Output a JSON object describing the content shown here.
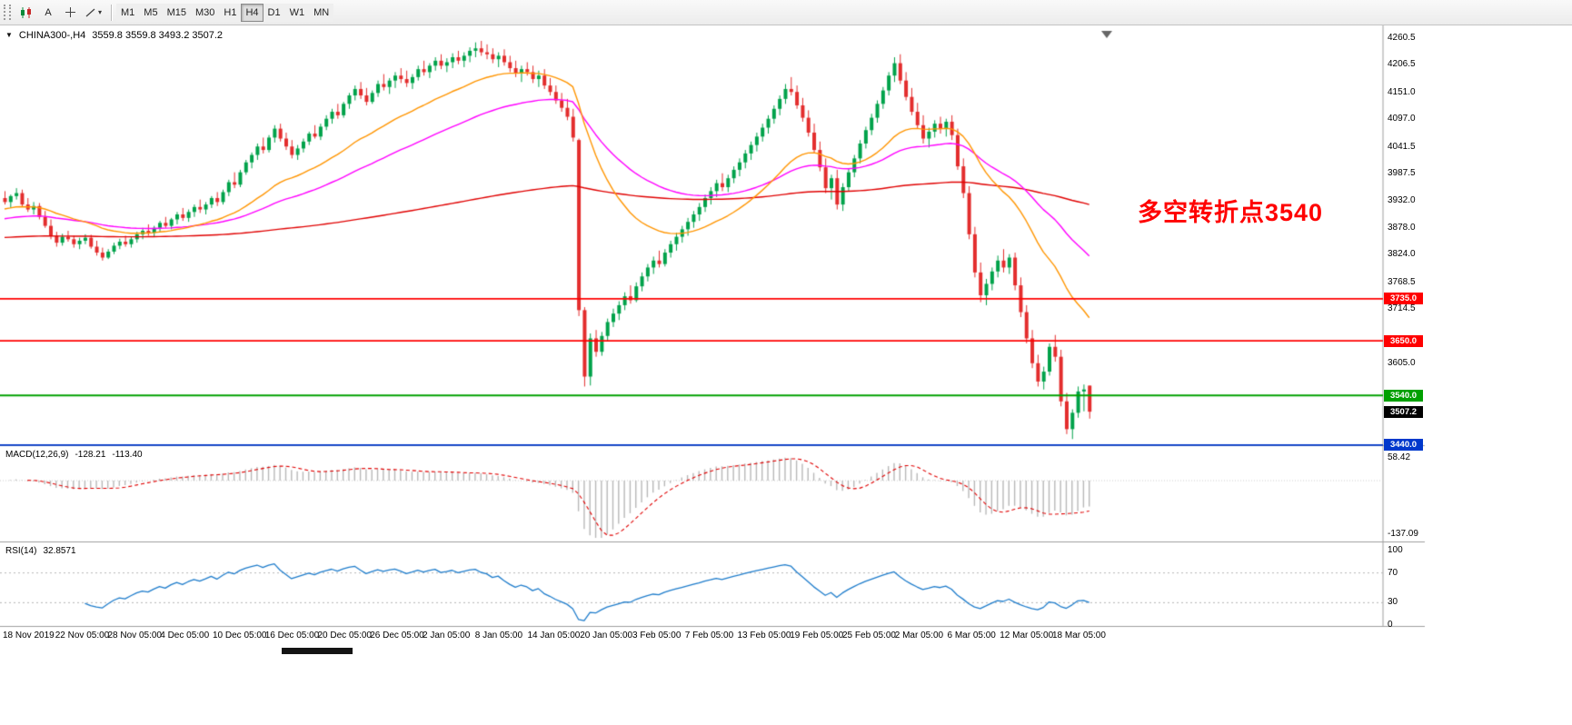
{
  "toolbar": {
    "text_tool_label": "A",
    "icons": [
      "chart-candles-icon",
      "text-tool",
      "crosshair-tool",
      "shapes-dropdown"
    ],
    "dropdown_arrow": "▾",
    "timeframes": [
      "M1",
      "M5",
      "M15",
      "M30",
      "H1",
      "H4",
      "D1",
      "W1",
      "MN"
    ],
    "active_timeframe": "H4"
  },
  "header": {
    "symbol_period": "CHINA300-,H4",
    "ohlc": "3559.8 3559.8 3493.2 3507.2"
  },
  "annotation": {
    "text": "多空转折点3540",
    "color": "#FF0000"
  },
  "price_axis": {
    "ticks": [
      4260.5,
      4206.5,
      4151.0,
      4097.0,
      4041.5,
      3987.5,
      3932.0,
      3878.0,
      3824.0,
      3768.5,
      3714.5,
      3605.0
    ],
    "min": 3439.5,
    "max": 4277.0
  },
  "levels": [
    {
      "value": 3735.0,
      "label": "3735.0",
      "color": "#FF0000"
    },
    {
      "value": 3650.0,
      "label": "3650.0",
      "color": "#FF0000"
    },
    {
      "value": 3540.0,
      "label": "3540.0",
      "color": "#00A000"
    },
    {
      "value": 3440.0,
      "label": "3440.0",
      "color": "#0038CC"
    }
  ],
  "current_price": {
    "value": 3507.2,
    "label": "3507.2",
    "bg": "#000000"
  },
  "time_axis": {
    "labels": [
      "18 Nov 2019",
      "22 Nov 05:00",
      "28 Nov 05:00",
      "4 Dec 05:00",
      "10 Dec 05:00",
      "16 Dec 05:00",
      "20 Dec 05:00",
      "26 Dec 05:00",
      "2 Jan 05:00",
      "8 Jan 05:00",
      "14 Jan 05:00",
      "20 Jan 05:00",
      "3 Feb 05:00",
      "7 Feb 05:00",
      "13 Feb 05:00",
      "19 Feb 05:00",
      "25 Feb 05:00",
      "2 Mar 05:00",
      "6 Mar 05:00",
      "12 Mar 05:00",
      "18 Mar 05:00"
    ]
  },
  "macd": {
    "name": "MACD(12,26,9)",
    "value": "-128.21",
    "signal": "-113.40",
    "axis_labels": [
      {
        "value": 58.42,
        "label": "58.42"
      },
      {
        "value": -137.09,
        "label": "-137.09"
      }
    ],
    "axis_max": 58.42,
    "axis_min": -137.09,
    "hist_color": "#B8B8B8",
    "line_color": "#E00000"
  },
  "rsi": {
    "name": "RSI(14)",
    "value": "32.8571",
    "axis_labels": [
      {
        "value": 100,
        "label": "100"
      },
      {
        "value": 70,
        "label": "70"
      },
      {
        "value": 30,
        "label": "30"
      },
      {
        "value": 0,
        "label": "0"
      }
    ],
    "levels": [
      70,
      30
    ],
    "color": "#1E7CCB"
  },
  "ma_colors": {
    "fast": "#FF9500",
    "mid": "#FF00FF",
    "slow": "#E00000"
  },
  "chart_data": {
    "type": "candlestick",
    "symbol": "CHINA300-",
    "timeframe": "H4",
    "up_color": "#00A24A",
    "down_color": "#E32D2D",
    "candles": [
      [
        3938,
        3952,
        3925,
        3930
      ],
      [
        3930,
        3945,
        3918,
        3942
      ],
      [
        3942,
        3958,
        3935,
        3948
      ],
      [
        3948,
        3955,
        3920,
        3925
      ],
      [
        3925,
        3938,
        3910,
        3915
      ],
      [
        3915,
        3930,
        3905,
        3922
      ],
      [
        3922,
        3928,
        3895,
        3900
      ],
      [
        3900,
        3912,
        3878,
        3882
      ],
      [
        3882,
        3895,
        3855,
        3862
      ],
      [
        3862,
        3870,
        3840,
        3848
      ],
      [
        3848,
        3866,
        3842,
        3860
      ],
      [
        3860,
        3872,
        3850,
        3855
      ],
      [
        3855,
        3862,
        3838,
        3845
      ],
      [
        3845,
        3858,
        3835,
        3852
      ],
      [
        3852,
        3865,
        3845,
        3858
      ],
      [
        3858,
        3864,
        3836,
        3840
      ],
      [
        3840,
        3852,
        3822,
        3828
      ],
      [
        3828,
        3838,
        3812,
        3818
      ],
      [
        3818,
        3835,
        3815,
        3830
      ],
      [
        3830,
        3848,
        3825,
        3842
      ],
      [
        3842,
        3856,
        3835,
        3850
      ],
      [
        3850,
        3862,
        3840,
        3845
      ],
      [
        3845,
        3860,
        3838,
        3855
      ],
      [
        3855,
        3870,
        3848,
        3865
      ],
      [
        3865,
        3878,
        3855,
        3872
      ],
      [
        3872,
        3885,
        3862,
        3868
      ],
      [
        3868,
        3882,
        3860,
        3878
      ],
      [
        3878,
        3892,
        3870,
        3888
      ],
      [
        3888,
        3900,
        3878,
        3882
      ],
      [
        3882,
        3898,
        3875,
        3895
      ],
      [
        3895,
        3910,
        3885,
        3905
      ],
      [
        3905,
        3918,
        3892,
        3898
      ],
      [
        3898,
        3915,
        3890,
        3910
      ],
      [
        3910,
        3925,
        3900,
        3920
      ],
      [
        3920,
        3935,
        3908,
        3915
      ],
      [
        3915,
        3930,
        3905,
        3925
      ],
      [
        3925,
        3942,
        3918,
        3938
      ],
      [
        3938,
        3950,
        3922,
        3930
      ],
      [
        3930,
        3955,
        3925,
        3950
      ],
      [
        3950,
        3975,
        3942,
        3970
      ],
      [
        3970,
        3990,
        3958,
        3965
      ],
      [
        3965,
        3995,
        3960,
        3990
      ],
      [
        3990,
        4015,
        3985,
        4010
      ],
      [
        4010,
        4030,
        3998,
        4025
      ],
      [
        4025,
        4048,
        4015,
        4042
      ],
      [
        4042,
        4060,
        4028,
        4035
      ],
      [
        4035,
        4065,
        4030,
        4060
      ],
      [
        4060,
        4085,
        4050,
        4078
      ],
      [
        4078,
        4088,
        4052,
        4058
      ],
      [
        4058,
        4070,
        4035,
        4042
      ],
      [
        4042,
        4055,
        4018,
        4025
      ],
      [
        4025,
        4045,
        4015,
        4038
      ],
      [
        4038,
        4058,
        4030,
        4052
      ],
      [
        4052,
        4072,
        4045,
        4068
      ],
      [
        4068,
        4085,
        4058,
        4062
      ],
      [
        4062,
        4088,
        4055,
        4082
      ],
      [
        4082,
        4105,
        4075,
        4098
      ],
      [
        4098,
        4118,
        4088,
        4112
      ],
      [
        4112,
        4128,
        4098,
        4105
      ],
      [
        4105,
        4132,
        4100,
        4128
      ],
      [
        4128,
        4150,
        4118,
        4145
      ],
      [
        4145,
        4165,
        4135,
        4158
      ],
      [
        4158,
        4172,
        4138,
        4145
      ],
      [
        4145,
        4160,
        4125,
        4132
      ],
      [
        4132,
        4155,
        4128,
        4150
      ],
      [
        4150,
        4175,
        4142,
        4168
      ],
      [
        4168,
        4188,
        4155,
        4162
      ],
      [
        4162,
        4180,
        4148,
        4175
      ],
      [
        4175,
        4192,
        4160,
        4185
      ],
      [
        4185,
        4200,
        4170,
        4178
      ],
      [
        4178,
        4195,
        4162,
        4170
      ],
      [
        4170,
        4188,
        4158,
        4182
      ],
      [
        4182,
        4205,
        4175,
        4198
      ],
      [
        4198,
        4215,
        4185,
        4192
      ],
      [
        4192,
        4210,
        4180,
        4205
      ],
      [
        4205,
        4222,
        4195,
        4215
      ],
      [
        4215,
        4228,
        4198,
        4205
      ],
      [
        4205,
        4220,
        4192,
        4212
      ],
      [
        4212,
        4230,
        4200,
        4222
      ],
      [
        4222,
        4235,
        4208,
        4215
      ],
      [
        4215,
        4232,
        4202,
        4225
      ],
      [
        4225,
        4242,
        4212,
        4235
      ],
      [
        4235,
        4252,
        4222,
        4240
      ],
      [
        4240,
        4255,
        4225,
        4232
      ],
      [
        4232,
        4248,
        4218,
        4228
      ],
      [
        4228,
        4240,
        4210,
        4218
      ],
      [
        4218,
        4232,
        4202,
        4225
      ],
      [
        4225,
        4238,
        4205,
        4212
      ],
      [
        4212,
        4225,
        4192,
        4200
      ],
      [
        4200,
        4215,
        4182,
        4190
      ],
      [
        4190,
        4205,
        4172,
        4198
      ],
      [
        4198,
        4212,
        4185,
        4192
      ],
      [
        4192,
        4205,
        4170,
        4178
      ],
      [
        4178,
        4195,
        4162,
        4185
      ],
      [
        4185,
        4198,
        4158,
        4165
      ],
      [
        4165,
        4180,
        4145,
        4152
      ],
      [
        4152,
        4165,
        4128,
        4135
      ],
      [
        4135,
        4150,
        4112,
        4120
      ],
      [
        4120,
        4138,
        4095,
        4102
      ],
      [
        4102,
        4118,
        4052,
        4060
      ],
      [
        4055,
        4058,
        3700,
        3712
      ],
      [
        3712,
        3718,
        3558,
        3578
      ],
      [
        3578,
        3665,
        3560,
        3655
      ],
      [
        3655,
        3672,
        3618,
        3628
      ],
      [
        3628,
        3668,
        3620,
        3660
      ],
      [
        3660,
        3695,
        3650,
        3688
      ],
      [
        3688,
        3715,
        3678,
        3705
      ],
      [
        3705,
        3730,
        3692,
        3722
      ],
      [
        3722,
        3748,
        3712,
        3740
      ],
      [
        3740,
        3762,
        3725,
        3732
      ],
      [
        3732,
        3768,
        3728,
        3760
      ],
      [
        3760,
        3788,
        3750,
        3780
      ],
      [
        3780,
        3805,
        3770,
        3798
      ],
      [
        3798,
        3820,
        3785,
        3812
      ],
      [
        3812,
        3832,
        3798,
        3805
      ],
      [
        3805,
        3835,
        3800,
        3828
      ],
      [
        3828,
        3852,
        3818,
        3845
      ],
      [
        3845,
        3868,
        3832,
        3860
      ],
      [
        3860,
        3882,
        3848,
        3875
      ],
      [
        3875,
        3898,
        3862,
        3890
      ],
      [
        3890,
        3912,
        3878,
        3905
      ],
      [
        3905,
        3928,
        3892,
        3920
      ],
      [
        3920,
        3945,
        3910,
        3938
      ],
      [
        3938,
        3960,
        3925,
        3952
      ],
      [
        3952,
        3975,
        3940,
        3968
      ],
      [
        3968,
        3988,
        3952,
        3960
      ],
      [
        3960,
        3985,
        3950,
        3978
      ],
      [
        3978,
        4002,
        3968,
        3995
      ],
      [
        3995,
        4018,
        3982,
        4010
      ],
      [
        4010,
        4035,
        3998,
        4028
      ],
      [
        4028,
        4052,
        4015,
        4045
      ],
      [
        4045,
        4070,
        4032,
        4062
      ],
      [
        4062,
        4088,
        4052,
        4080
      ],
      [
        4080,
        4105,
        4068,
        4098
      ],
      [
        4098,
        4125,
        4088,
        4118
      ],
      [
        4118,
        4145,
        4105,
        4138
      ],
      [
        4138,
        4168,
        4128,
        4158
      ],
      [
        4158,
        4182,
        4145,
        4152
      ],
      [
        4152,
        4165,
        4118,
        4125
      ],
      [
        4125,
        4140,
        4092,
        4100
      ],
      [
        4100,
        4115,
        4062,
        4070
      ],
      [
        4070,
        4088,
        4028,
        4035
      ],
      [
        4035,
        4052,
        3992,
        4000
      ],
      [
        4000,
        4018,
        3948,
        3958
      ],
      [
        3958,
        3985,
        3935,
        3978
      ],
      [
        3978,
        3995,
        3915,
        3925
      ],
      [
        3925,
        3968,
        3912,
        3960
      ],
      [
        3960,
        3998,
        3952,
        3990
      ],
      [
        3990,
        4025,
        3980,
        4018
      ],
      [
        4018,
        4055,
        4008,
        4048
      ],
      [
        4048,
        4082,
        4038,
        4075
      ],
      [
        4075,
        4108,
        4065,
        4100
      ],
      [
        4100,
        4135,
        4090,
        4128
      ],
      [
        4128,
        4162,
        4118,
        4155
      ],
      [
        4155,
        4192,
        4145,
        4185
      ],
      [
        4185,
        4222,
        4172,
        4210
      ],
      [
        4210,
        4228,
        4168,
        4175
      ],
      [
        4175,
        4192,
        4135,
        4142
      ],
      [
        4142,
        4160,
        4105,
        4112
      ],
      [
        4112,
        4130,
        4078,
        4085
      ],
      [
        4085,
        4105,
        4048,
        4058
      ],
      [
        4058,
        4080,
        4040,
        4072
      ],
      [
        4072,
        4095,
        4060,
        4088
      ],
      [
        4088,
        4102,
        4068,
        4078
      ],
      [
        4078,
        4098,
        4062,
        4092
      ],
      [
        4092,
        4105,
        4055,
        4065
      ],
      [
        4065,
        4078,
        3995,
        4002
      ],
      [
        4002,
        4018,
        3938,
        3948
      ],
      [
        3948,
        3962,
        3855,
        3865
      ],
      [
        3865,
        3880,
        3778,
        3788
      ],
      [
        3788,
        3808,
        3728,
        3742
      ],
      [
        3742,
        3775,
        3722,
        3765
      ],
      [
        3765,
        3798,
        3752,
        3790
      ],
      [
        3790,
        3822,
        3778,
        3812
      ],
      [
        3812,
        3835,
        3788,
        3798
      ],
      [
        3798,
        3825,
        3785,
        3818
      ],
      [
        3818,
        3828,
        3752,
        3762
      ],
      [
        3762,
        3778,
        3698,
        3708
      ],
      [
        3708,
        3722,
        3645,
        3655
      ],
      [
        3655,
        3672,
        3595,
        3605
      ],
      [
        3605,
        3622,
        3558,
        3568
      ],
      [
        3568,
        3598,
        3552,
        3588
      ],
      [
        3588,
        3645,
        3580,
        3638
      ],
      [
        3638,
        3662,
        3608,
        3618
      ],
      [
        3618,
        3632,
        3518,
        3528
      ],
      [
        3528,
        3545,
        3462,
        3472
      ],
      [
        3472,
        3512,
        3452,
        3505
      ],
      [
        3505,
        3558,
        3495,
        3548
      ],
      [
        3548,
        3562,
        3508,
        3552
      ],
      [
        3559.8,
        3559.8,
        3493.2,
        3507.2
      ]
    ]
  }
}
